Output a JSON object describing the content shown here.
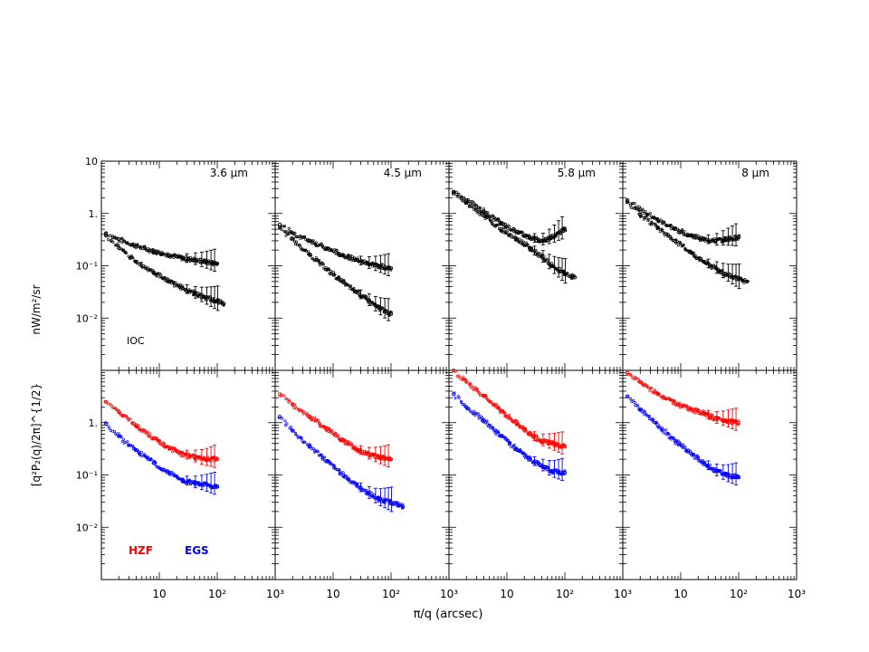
{
  "figure": {
    "y_axis_label": "[q²P₂(q)/2π]^{1/2}  nW/m²/sr",
    "y_axis_label_top": "nW/m²/sr",
    "y_axis_label_bottom": "[q²P₂(q)/2π]^{1/2}",
    "x_axis_label": "π/q   (arcsec)",
    "colors": {
      "black": "#000000",
      "red": "#ff0000",
      "blue": "#0000ff"
    }
  },
  "chart_data": [
    {
      "type": "scatter",
      "panel": "top-1",
      "title": "3.6 μm",
      "annotation": "IOC",
      "xscale": "log",
      "yscale": "log",
      "xlim": [
        1,
        1000
      ],
      "ylim": [
        0.001,
        10
      ],
      "series": [
        {
          "color": "#000000",
          "x": [
            1.2,
            2,
            4,
            8,
            15,
            25,
            40,
            60,
            100
          ],
          "y": [
            0.42,
            0.32,
            0.24,
            0.19,
            0.16,
            0.14,
            0.13,
            0.12,
            0.11
          ]
        },
        {
          "color": "#000000",
          "x": [
            1.2,
            2,
            4,
            8,
            15,
            25,
            40,
            60,
            100,
            130
          ],
          "y": [
            0.38,
            0.22,
            0.12,
            0.075,
            0.05,
            0.038,
            0.03,
            0.025,
            0.021,
            0.019
          ]
        }
      ]
    },
    {
      "type": "scatter",
      "panel": "top-2",
      "title": "4.5 μm",
      "xscale": "log",
      "yscale": "log",
      "xlim": [
        1,
        1000
      ],
      "ylim": [
        0.001,
        10
      ],
      "series": [
        {
          "color": "#000000",
          "x": [
            1.2,
            2,
            4,
            8,
            15,
            25,
            40,
            60,
            100
          ],
          "y": [
            0.62,
            0.42,
            0.3,
            0.21,
            0.16,
            0.13,
            0.11,
            0.1,
            0.09
          ]
        },
        {
          "color": "#000000",
          "x": [
            1.2,
            2,
            4,
            8,
            15,
            25,
            40,
            60,
            100
          ],
          "y": [
            0.55,
            0.32,
            0.16,
            0.085,
            0.048,
            0.032,
            0.022,
            0.016,
            0.012
          ]
        }
      ]
    },
    {
      "type": "scatter",
      "panel": "top-3",
      "title": "5.8 μm",
      "xscale": "log",
      "yscale": "log",
      "xlim": [
        1,
        1000
      ],
      "ylim": [
        0.001,
        10
      ],
      "series": [
        {
          "color": "#000000",
          "x": [
            1.2,
            2,
            4,
            8,
            15,
            25,
            40,
            60,
            100
          ],
          "y": [
            2.6,
            1.8,
            1.1,
            0.65,
            0.45,
            0.35,
            0.3,
            0.35,
            0.5
          ]
        },
        {
          "color": "#000000",
          "x": [
            1.2,
            2,
            4,
            8,
            15,
            25,
            40,
            60,
            100,
            150
          ],
          "y": [
            2.4,
            1.6,
            0.9,
            0.5,
            0.32,
            0.22,
            0.15,
            0.1,
            0.07,
            0.06
          ]
        }
      ]
    },
    {
      "type": "scatter",
      "panel": "top-4",
      "title": "8 μm",
      "xscale": "log",
      "yscale": "log",
      "xlim": [
        1,
        1000
      ],
      "ylim": [
        0.001,
        10
      ],
      "series": [
        {
          "color": "#000000",
          "x": [
            1.2,
            2,
            4,
            8,
            15,
            25,
            40,
            60,
            100
          ],
          "y": [
            1.8,
            1.2,
            0.75,
            0.5,
            0.38,
            0.32,
            0.3,
            0.32,
            0.35
          ]
        },
        {
          "color": "#000000",
          "x": [
            1.2,
            2,
            4,
            8,
            15,
            25,
            40,
            60,
            100,
            140
          ],
          "y": [
            1.7,
            0.95,
            0.52,
            0.3,
            0.18,
            0.12,
            0.09,
            0.07,
            0.055,
            0.05
          ]
        }
      ]
    },
    {
      "type": "scatter",
      "panel": "bottom-1",
      "legend": [
        "HZF",
        "EGS"
      ],
      "xscale": "log",
      "yscale": "log",
      "xlim": [
        1,
        1000
      ],
      "ylim": [
        0.001,
        10
      ],
      "series": [
        {
          "name": "HZF",
          "color": "#ff0000",
          "x": [
            1.2,
            2,
            4,
            8,
            15,
            25,
            40,
            60,
            100
          ],
          "y": [
            2.5,
            1.6,
            0.9,
            0.5,
            0.33,
            0.25,
            0.22,
            0.2,
            0.2
          ]
        },
        {
          "name": "EGS",
          "color": "#0000ff",
          "x": [
            1.2,
            2,
            4,
            8,
            15,
            25,
            40,
            60,
            100
          ],
          "y": [
            0.95,
            0.55,
            0.3,
            0.17,
            0.11,
            0.08,
            0.07,
            0.065,
            0.06
          ]
        }
      ]
    },
    {
      "type": "scatter",
      "panel": "bottom-2",
      "xscale": "log",
      "yscale": "log",
      "xlim": [
        1,
        1000
      ],
      "ylim": [
        0.001,
        10
      ],
      "series": [
        {
          "name": "HZF",
          "color": "#ff0000",
          "x": [
            1.2,
            2,
            4,
            8,
            15,
            25,
            40,
            60,
            100
          ],
          "y": [
            3.5,
            2.2,
            1.3,
            0.75,
            0.45,
            0.32,
            0.25,
            0.22,
            0.2
          ]
        },
        {
          "name": "EGS",
          "color": "#0000ff",
          "x": [
            1.2,
            2,
            4,
            8,
            15,
            25,
            40,
            60,
            100,
            160
          ],
          "y": [
            1.3,
            0.7,
            0.35,
            0.18,
            0.1,
            0.065,
            0.045,
            0.035,
            0.03,
            0.025
          ]
        }
      ]
    },
    {
      "type": "scatter",
      "panel": "bottom-3",
      "xscale": "log",
      "yscale": "log",
      "xlim": [
        1,
        1000
      ],
      "ylim": [
        0.001,
        10
      ],
      "series": [
        {
          "name": "HZF",
          "color": "#ff0000",
          "x": [
            1.2,
            2,
            4,
            8,
            15,
            25,
            40,
            60,
            100
          ],
          "y": [
            10,
            6,
            3.2,
            1.7,
            0.95,
            0.6,
            0.45,
            0.4,
            0.35
          ]
        },
        {
          "name": "EGS",
          "color": "#0000ff",
          "x": [
            1.2,
            2,
            4,
            8,
            15,
            25,
            40,
            60,
            100
          ],
          "y": [
            3.5,
            2,
            1.1,
            0.55,
            0.3,
            0.2,
            0.15,
            0.12,
            0.11
          ]
        }
      ]
    },
    {
      "type": "scatter",
      "panel": "bottom-4",
      "xscale": "log",
      "yscale": "log",
      "xlim": [
        1,
        1000
      ],
      "ylim": [
        0.001,
        10
      ],
      "series": [
        {
          "name": "HZF",
          "color": "#ff0000",
          "x": [
            1.2,
            2,
            4,
            8,
            15,
            25,
            40,
            60,
            100
          ],
          "y": [
            9,
            6,
            3.5,
            2.4,
            1.8,
            1.5,
            1.2,
            1.1,
            1
          ]
        },
        {
          "name": "EGS",
          "color": "#0000ff",
          "x": [
            1.2,
            2,
            4,
            8,
            15,
            25,
            40,
            60,
            100
          ],
          "y": [
            3.2,
            1.8,
            0.9,
            0.45,
            0.26,
            0.17,
            0.12,
            0.1,
            0.09
          ]
        }
      ]
    }
  ]
}
